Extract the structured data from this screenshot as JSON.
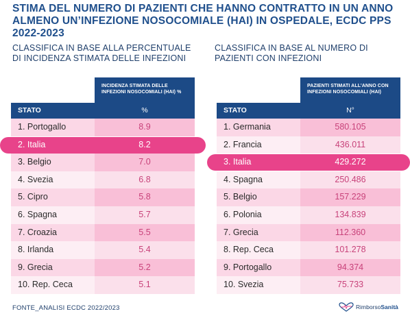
{
  "title": "STIMA DEL NUMERO DI PAZIENTI CHE HANNO CONTRATTO IN UN ANNO ALMENO UN’INFEZIONE NOSOCOMIALE (HAI) IN OSPEDALE, ECDC PPS 2022-2023",
  "source": "FONTE_ANALISI ECDC 2022/2023",
  "logo": {
    "part1": "Rimborso",
    "part2": "Sanità",
    "icon": "heart-pulse-icon"
  },
  "colors": {
    "header": "#1c4a86",
    "highlight": "#e8438a",
    "value_text": "#c8427a"
  },
  "chart_data": [
    {
      "type": "table",
      "title": "CLASSIFICA IN BASE ALLA PERCENTUALE DI INCIDENZA STIMATA DELLE INFEZIONI",
      "column_headers": [
        "STATO",
        "%"
      ],
      "value_header_caption": "INCIDENZA STIMATA DELLE INFEZIONI NOSOCOMIALI (HAI) %",
      "highlight_rank": 2,
      "rows": [
        {
          "label": "1. Portogallo",
          "value": "8.9"
        },
        {
          "label": "2. Italia",
          "value": "8.2"
        },
        {
          "label": "3. Belgio",
          "value": "7.0"
        },
        {
          "label": "4. Svezia",
          "value": "6.8"
        },
        {
          "label": "5. Cipro",
          "value": "5.8"
        },
        {
          "label": "6. Spagna",
          "value": "5.7"
        },
        {
          "label": "7. Croazia",
          "value": "5.5"
        },
        {
          "label": "8. Irlanda",
          "value": "5.4"
        },
        {
          "label": "9. Grecia",
          "value": "5.2"
        },
        {
          "label": "10. Rep. Ceca",
          "value": "5.1"
        }
      ]
    },
    {
      "type": "table",
      "title": "CLASSIFICA IN BASE AL NUMERO DI PAZIENTI CON INFEZIONI",
      "column_headers": [
        "STATO",
        "N°"
      ],
      "value_header_caption": "PAZIENTI STIMATI ALL’ANNO CON INFEZIONI NOSOCOMIALI (HAI)",
      "highlight_rank": 3,
      "rows": [
        {
          "label": "1. Germania",
          "value": "580.105"
        },
        {
          "label": "2. Francia",
          "value": "436.011"
        },
        {
          "label": "3. Italia",
          "value": "429.272"
        },
        {
          "label": "4. Spagna",
          "value": "250.486"
        },
        {
          "label": "5. Belgio",
          "value": "157.229"
        },
        {
          "label": "6. Polonia",
          "value": "134.839"
        },
        {
          "label": "7. Grecia",
          "value": "112.360"
        },
        {
          "label": "8. Rep. Ceca",
          "value": "101.278"
        },
        {
          "label": "9. Portogallo",
          "value": "94.374"
        },
        {
          "label": "10. Svezia",
          "value": "75.733"
        }
      ]
    }
  ]
}
